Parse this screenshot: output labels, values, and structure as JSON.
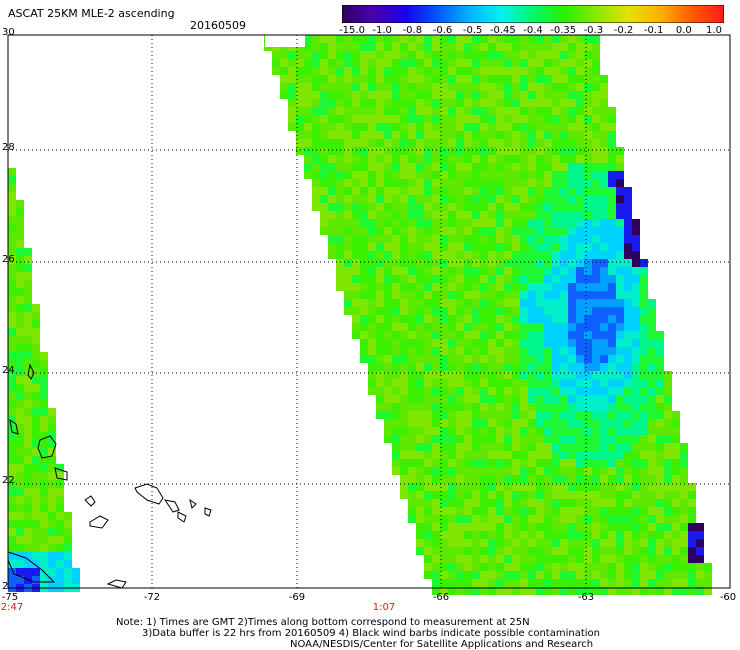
{
  "header": {
    "title": "ASCAT 25KM MLE-2 ascending",
    "date": "20160509"
  },
  "colorbar": {
    "labels": [
      "-15.0",
      "-1.0",
      "-0.8",
      "-0.6",
      "-0.5",
      "-0.45",
      "-0.4",
      "-0.35",
      "-0.3",
      "-0.2",
      "-0.1",
      "0.0",
      "1.0"
    ],
    "colors": [
      "#300060",
      "#4a00b0",
      "#1b00ee",
      "#0058ff",
      "#00b4ff",
      "#00f2f2",
      "#00f86a",
      "#2cf000",
      "#8ae800",
      "#e4e200",
      "#ffb000",
      "#ff5a00",
      "#ff1a1a"
    ]
  },
  "map": {
    "lat_labels": [
      "30",
      "28",
      "26",
      "24",
      "22",
      "2"
    ],
    "lon_labels": [
      "-75",
      "-72",
      "-69",
      "-66",
      "-63",
      "-60"
    ],
    "time_labels": [
      "2:47",
      "1:07"
    ],
    "land_color": "#000000",
    "grid_color": "#000000"
  },
  "notes": {
    "line1": "Note: 1) Times are GMT 2)Times along bottom correspond to measurement at 25N",
    "line2": "3)Data buffer is 22 hrs from 20160509 4) Black wind barbs indicate possible contamination",
    "line3": "NOAA/NESDIS/Center for Satellite Applications and Research"
  }
}
